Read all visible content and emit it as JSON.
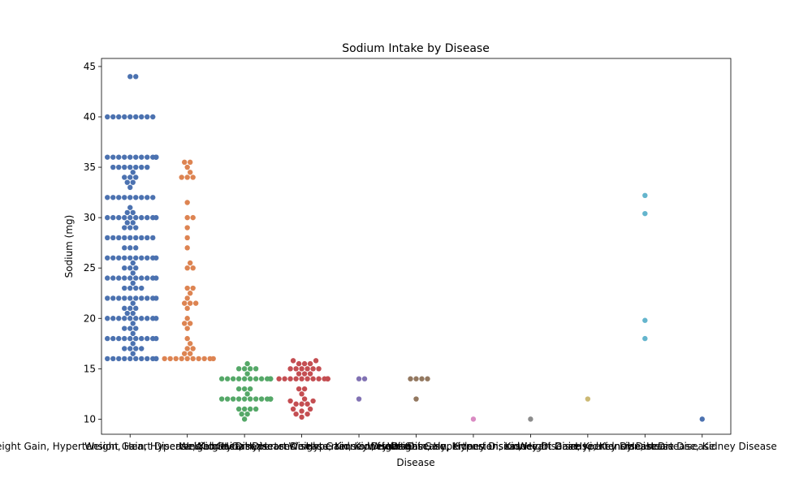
{
  "chart_data": {
    "type": "scatter",
    "subtype": "swarm",
    "title": "Sodium Intake by Disease",
    "xlabel": "Disease",
    "ylabel": "Sodium (mg)",
    "ylim": [
      8.5,
      45.8
    ],
    "yticks": [
      10,
      15,
      20,
      25,
      30,
      35,
      40,
      45
    ],
    "grid": false,
    "legend": "none",
    "categories": [
      {
        "name": "Weight Gain, Hypertension, Heart Disease, Kidney Disease",
        "color": "#4c72b0",
        "values": [
          44,
          44,
          40,
          40,
          40,
          40,
          40,
          40,
          40,
          40,
          40,
          36,
          36,
          36,
          36,
          36,
          36,
          36,
          36,
          36,
          36,
          36,
          36,
          35,
          35,
          35,
          35,
          35,
          35,
          35,
          34.5,
          34,
          34,
          34,
          33.5,
          33.5,
          33,
          32,
          32,
          32,
          32,
          32,
          32,
          32,
          32,
          32,
          31,
          30.5,
          30.5,
          30,
          30,
          30,
          30,
          30,
          30,
          30,
          30,
          30,
          30,
          29.5,
          29.5,
          29,
          29,
          29,
          28,
          28,
          28,
          28,
          28,
          28,
          28,
          28,
          28,
          27,
          27,
          27,
          26,
          26,
          26,
          26,
          26,
          26,
          26,
          26,
          26,
          26,
          25.5,
          25,
          25,
          25,
          24.5,
          24,
          24,
          24,
          24,
          24,
          24,
          24,
          24,
          24,
          24,
          23.5,
          23,
          23,
          23,
          23,
          22,
          22,
          22,
          22,
          22,
          22,
          22,
          22,
          22,
          22,
          21.5,
          21,
          21,
          21,
          20.5,
          20.5,
          20,
          20,
          20,
          20,
          20,
          20,
          20,
          20,
          20,
          20,
          19.5,
          19,
          19,
          19,
          18.5,
          18,
          18,
          18,
          18,
          18,
          18,
          18,
          18,
          18,
          18,
          17.5,
          17,
          17,
          17,
          17,
          16.5,
          16,
          16,
          16,
          16,
          16,
          16,
          16,
          16,
          16,
          16,
          16
        ]
      },
      {
        "name": "Weight Gain, Hypertension, Heart Disease",
        "color": "#dd8452",
        "values": [
          35.5,
          35.5,
          35,
          34.5,
          34,
          34,
          34,
          31.5,
          30,
          30,
          29,
          28,
          27,
          25.5,
          25,
          25,
          23,
          23,
          22.5,
          22,
          21.5,
          21.5,
          21.5,
          21,
          20,
          19.5,
          19.5,
          19,
          18,
          17.5,
          17,
          17,
          16.5,
          16.5,
          16,
          16,
          16,
          16,
          16,
          16,
          16,
          16,
          16,
          16
        ]
      },
      {
        "name": "Weight Gain, Hypertension",
        "color": "#55a868",
        "values": [
          15.5,
          15,
          15,
          15,
          15,
          14.5,
          14,
          14,
          14,
          14,
          14,
          14,
          14,
          14,
          14,
          14,
          14,
          14,
          13,
          13,
          13,
          12.5,
          12,
          12,
          12,
          12,
          12,
          12,
          12,
          12,
          12,
          12,
          12,
          12,
          11,
          11,
          11,
          11,
          10.5,
          10.5,
          10
        ]
      },
      {
        "name": "Weight Gain, Heart Disease, Kidney Disease",
        "color": "#c44e52",
        "values": [
          15.8,
          15.8,
          15.5,
          15.5,
          15.5,
          15,
          15,
          15,
          15,
          15,
          15,
          14.5,
          14.5,
          14.5,
          14,
          14,
          14,
          14,
          14,
          14,
          14,
          14,
          14,
          14,
          14,
          14,
          14,
          13,
          13,
          12.5,
          12,
          11.8,
          11.8,
          11.5,
          11.5,
          11.5,
          11,
          11,
          10.8,
          10.5,
          10.5,
          10.2
        ]
      },
      {
        "name": "Weight Gain, Kidney Disease",
        "color": "#8172b3",
        "values": [
          14,
          14,
          12
        ]
      },
      {
        "name": "Hypertension, Heart Disease, Kidney Disease",
        "color": "#937860",
        "values": [
          14,
          14,
          14,
          14,
          12
        ]
      },
      {
        "name": "Weight Gain, Hypertension, Kidney Disease",
        "color": "#da8bc3",
        "values": [
          10
        ]
      },
      {
        "name": "Weight Gain, Hypertension, Heart Disease, Kidney Disease",
        "color": "#8c8c8c",
        "values": [
          10
        ]
      },
      {
        "name": "Weight Gain, Kidney Disease",
        "color": "#ccb974",
        "values": [
          12
        ]
      },
      {
        "name": "Hypertension, Heart Disease",
        "color": "#64b5cd",
        "values": [
          32.2,
          30.4,
          19.8,
          18
        ]
      },
      {
        "name": "Heart Disease, Kidney Disease",
        "color": "#4c72b0",
        "values": [
          10
        ]
      }
    ]
  }
}
